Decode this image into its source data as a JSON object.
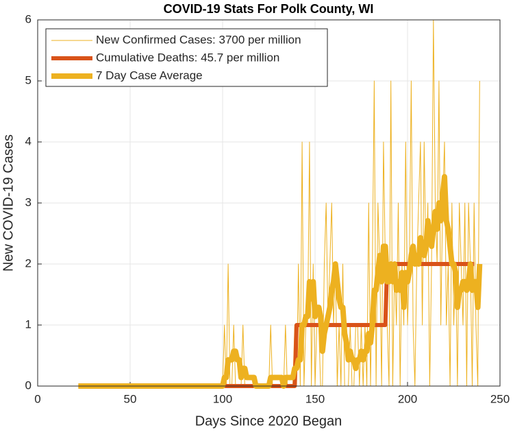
{
  "chart_data": {
    "type": "line",
    "title": "COVID-19 Stats For Polk County, WI",
    "x_label": "Days Since 2020 Began",
    "y_label": "New COVID-19 Cases",
    "xlim": [
      0,
      250
    ],
    "xticks": [
      0,
      50,
      100,
      150,
      200,
      250
    ],
    "ylim": [
      0,
      6
    ],
    "yticks": [
      0,
      1,
      2,
      3,
      4,
      5,
      6
    ],
    "grid": true,
    "legend": "top-left",
    "x": [
      22,
      23,
      24,
      25,
      26,
      27,
      28,
      29,
      30,
      31,
      32,
      33,
      34,
      35,
      36,
      37,
      38,
      39,
      40,
      41,
      42,
      43,
      44,
      45,
      46,
      47,
      48,
      49,
      50,
      51,
      52,
      53,
      54,
      55,
      56,
      57,
      58,
      59,
      60,
      61,
      62,
      63,
      64,
      65,
      66,
      67,
      68,
      69,
      70,
      71,
      72,
      73,
      74,
      75,
      76,
      77,
      78,
      79,
      80,
      81,
      82,
      83,
      84,
      85,
      86,
      87,
      88,
      89,
      90,
      91,
      92,
      93,
      94,
      95,
      96,
      97,
      98,
      99,
      100,
      101,
      102,
      103,
      104,
      105,
      106,
      107,
      108,
      109,
      110,
      111,
      112,
      113,
      114,
      115,
      116,
      117,
      118,
      119,
      120,
      121,
      122,
      123,
      124,
      125,
      126,
      127,
      128,
      129,
      130,
      131,
      132,
      133,
      134,
      135,
      136,
      137,
      138,
      139,
      140,
      141,
      142,
      143,
      144,
      145,
      146,
      147,
      148,
      149,
      150,
      151,
      152,
      153,
      154,
      155,
      156,
      157,
      158,
      159,
      160,
      161,
      162,
      163,
      164,
      165,
      166,
      167,
      168,
      169,
      170,
      171,
      172,
      173,
      174,
      175,
      176,
      177,
      178,
      179,
      180,
      181,
      182,
      183,
      184,
      185,
      186,
      187,
      188,
      189,
      190,
      191,
      192,
      193,
      194,
      195,
      196,
      197,
      198,
      199,
      200,
      201,
      202,
      203,
      204,
      205,
      206,
      207,
      208,
      209,
      210,
      211,
      212,
      213,
      214,
      215,
      216,
      217,
      218,
      219,
      220,
      221,
      222,
      223,
      224,
      225,
      226,
      227,
      228,
      229,
      230,
      231,
      232,
      233,
      234,
      235,
      236,
      237,
      238,
      239
    ],
    "series": [
      {
        "name": "New Confirmed Cases: 3700 per million",
        "color": "#EDB120",
        "width": 1,
        "values": [
          0,
          0,
          0,
          0,
          0,
          0,
          0,
          0,
          0,
          0,
          0,
          0,
          0,
          0,
          0,
          0,
          0,
          0,
          0,
          0,
          0,
          0,
          0,
          0,
          0,
          0,
          0,
          0,
          0,
          0,
          0,
          0,
          0,
          0,
          0,
          0,
          0,
          0,
          0,
          0,
          0,
          0,
          0,
          0,
          0,
          0,
          0,
          0,
          0,
          0,
          0,
          0,
          0,
          0,
          0,
          0,
          0,
          0,
          0,
          0,
          0,
          0,
          0,
          0,
          0,
          0,
          0,
          0,
          0,
          0,
          0,
          0,
          0,
          0,
          0,
          0,
          0,
          0,
          0,
          1,
          0,
          2,
          0,
          0,
          1,
          0,
          0,
          0,
          0,
          1,
          0,
          0,
          0,
          0,
          0,
          0,
          0,
          0,
          0,
          0,
          0,
          0,
          0,
          0,
          1,
          0,
          0,
          0,
          0,
          0,
          0,
          0,
          1,
          0,
          0,
          0,
          0,
          1,
          0,
          2,
          0,
          4,
          0,
          1,
          1,
          4,
          0,
          2,
          0,
          1,
          1,
          0,
          0,
          2,
          3,
          1,
          2,
          3,
          1,
          2,
          0,
          1,
          0,
          2,
          0,
          0,
          0,
          1,
          0,
          0,
          1,
          1,
          0,
          1,
          0,
          1,
          0,
          3,
          0,
          2,
          5,
          0,
          3,
          2,
          0,
          4,
          2,
          1,
          0,
          5,
          0,
          2,
          1,
          3,
          0,
          2,
          1,
          4,
          1,
          2,
          5,
          1,
          0,
          2,
          3,
          4,
          1,
          4,
          2,
          3,
          0,
          2,
          6,
          3,
          2,
          5,
          1,
          3,
          4,
          1,
          2,
          0,
          3,
          1,
          2,
          0,
          3,
          2,
          1,
          3,
          0,
          3,
          2,
          0,
          3,
          1,
          0,
          5
        ]
      },
      {
        "name": "Cumulative Deaths: 45.7 per million",
        "color": "#D95319",
        "width": 6,
        "values": [
          0,
          0,
          0,
          0,
          0,
          0,
          0,
          0,
          0,
          0,
          0,
          0,
          0,
          0,
          0,
          0,
          0,
          0,
          0,
          0,
          0,
          0,
          0,
          0,
          0,
          0,
          0,
          0,
          0,
          0,
          0,
          0,
          0,
          0,
          0,
          0,
          0,
          0,
          0,
          0,
          0,
          0,
          0,
          0,
          0,
          0,
          0,
          0,
          0,
          0,
          0,
          0,
          0,
          0,
          0,
          0,
          0,
          0,
          0,
          0,
          0,
          0,
          0,
          0,
          0,
          0,
          0,
          0,
          0,
          0,
          0,
          0,
          0,
          0,
          0,
          0,
          0,
          0,
          0,
          0,
          0,
          0,
          0,
          0,
          0,
          0,
          0,
          0,
          0,
          0,
          0,
          0,
          0,
          0,
          0,
          0,
          0,
          0,
          0,
          0,
          0,
          0,
          0,
          0,
          0,
          0,
          0,
          0,
          0,
          0,
          0,
          0,
          0,
          0,
          0,
          0,
          0,
          0,
          1,
          1,
          1,
          1,
          1,
          1,
          1,
          1,
          1,
          1,
          1,
          1,
          1,
          1,
          1,
          1,
          1,
          1,
          1,
          1,
          1,
          1,
          1,
          1,
          1,
          1,
          1,
          1,
          1,
          1,
          1,
          1,
          1,
          1,
          1,
          1,
          1,
          1,
          1,
          1,
          1,
          1,
          1,
          1,
          1,
          1,
          1,
          1,
          1,
          2,
          2,
          2,
          2,
          2,
          2,
          2,
          2,
          2,
          2,
          2,
          2,
          2,
          2,
          2,
          2,
          2,
          2,
          2,
          2,
          2,
          2,
          2,
          2,
          2,
          2,
          2,
          2,
          2,
          2,
          2,
          2,
          2,
          2,
          2,
          2,
          2,
          2,
          2,
          2,
          2,
          2,
          2,
          2,
          2,
          2,
          2,
          2,
          null,
          null,
          null
        ]
      },
      {
        "name": "7 Day Case Average",
        "color": "#EDB120",
        "width": 8,
        "values": [
          0,
          0,
          0,
          0,
          0,
          0,
          0,
          0,
          0,
          0,
          0,
          0,
          0,
          0,
          0,
          0,
          0,
          0,
          0,
          0,
          0,
          0,
          0,
          0,
          0,
          0,
          0,
          0,
          0,
          0,
          0,
          0,
          0,
          0,
          0,
          0,
          0,
          0,
          0,
          0,
          0,
          0,
          0,
          0,
          0,
          0,
          0,
          0,
          0,
          0,
          0,
          0,
          0,
          0,
          0,
          0,
          0,
          0,
          0,
          0,
          0,
          0,
          0,
          0,
          0,
          0,
          0,
          0,
          0,
          0,
          0,
          0,
          0,
          0,
          0,
          0,
          0,
          0,
          0,
          0.14,
          0.14,
          0.43,
          0.43,
          0.43,
          0.57,
          0.57,
          0.43,
          0.43,
          0.14,
          0.29,
          0.29,
          0.14,
          0.14,
          0.14,
          0.14,
          0.14,
          0,
          0,
          0,
          0,
          0,
          0,
          0,
          0,
          0.14,
          0.14,
          0.14,
          0.14,
          0.14,
          0.14,
          0.14,
          0,
          0.14,
          0.14,
          0.14,
          0.14,
          0.14,
          0.29,
          0.29,
          0.43,
          0.43,
          1,
          1,
          1.14,
          1.14,
          1.71,
          1.43,
          1.71,
          1.14,
          1.29,
          1.29,
          1.14,
          0.57,
          0.86,
          1,
          1.14,
          1.29,
          1.57,
          1.71,
          2,
          1.71,
          1.43,
          1.29,
          1.29,
          0.86,
          0.71,
          0.43,
          0.57,
          0.43,
          0.43,
          0.29,
          0.43,
          0.43,
          0.57,
          0.43,
          0.57,
          0.57,
          0.86,
          0.71,
          1,
          1.57,
          1.57,
          1.86,
          2.14,
          1.71,
          2.29,
          2.29,
          1.71,
          1.71,
          2,
          1.71,
          2,
          1.57,
          1.71,
          1.57,
          1.86,
          1.29,
          1.86,
          1.71,
          1.86,
          2.14,
          2.29,
          2,
          2.14,
          2,
          2.43,
          2.29,
          2.14,
          2.29,
          2.71,
          2.43,
          2.29,
          2.57,
          2.86,
          2.57,
          3,
          2.71,
          3.14,
          3.43,
          2.71,
          2.57,
          2.29,
          2,
          2,
          1.86,
          1.29,
          1.57,
          1.57,
          1.71,
          1.71,
          1.57,
          1.71,
          2,
          1.57,
          1.71,
          1.71,
          1.29,
          2
        ]
      }
    ]
  }
}
